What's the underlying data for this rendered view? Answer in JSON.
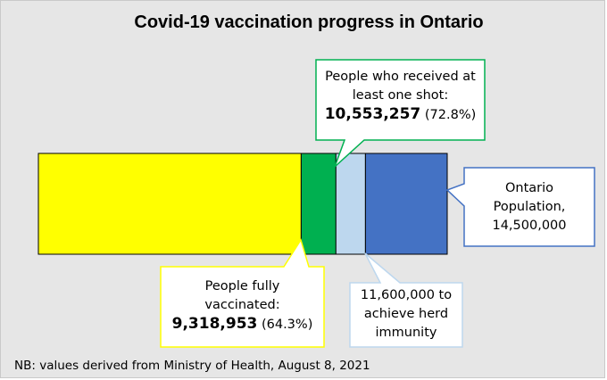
{
  "title": "Covid-19 vaccination progress in Ontario",
  "chart_data": {
    "type": "bar",
    "orientation": "horizontal-stacked",
    "segments": [
      {
        "name": "People fully vaccinated",
        "value": 9318953,
        "color": "#ffff00"
      },
      {
        "name": "People who received at least one shot",
        "value": 1234304,
        "color": "#00b050"
      },
      {
        "name": "11,600,000 to achieve herd immunity",
        "value": 1046743,
        "color": "#bdd7ee"
      },
      {
        "name": "Ontario Population",
        "value": 2900000,
        "color": "#4472c4"
      }
    ],
    "total": 14500000,
    "cumulative": {
      "fully_vaccinated": 9318953,
      "at_least_one_shot": 10553257,
      "herd_immunity": 11600000,
      "population": 14500000
    }
  },
  "callouts": {
    "one_shot": {
      "line1": "People who received at",
      "line2": "least one shot:",
      "value": "10,553,257",
      "pct": "(72.8%)"
    },
    "fully": {
      "line1": "People fully",
      "line2": "vaccinated:",
      "value": "9,318,953",
      "pct": "(64.3%)"
    },
    "herd": {
      "line1": "11,600,000 to",
      "line2": "achieve herd",
      "line3": "immunity"
    },
    "population": {
      "line1": "Ontario",
      "line2": "Population,",
      "line3": "14,500,000"
    }
  },
  "note": "NB: values derived from Ministry of Health, August 8, 2021"
}
